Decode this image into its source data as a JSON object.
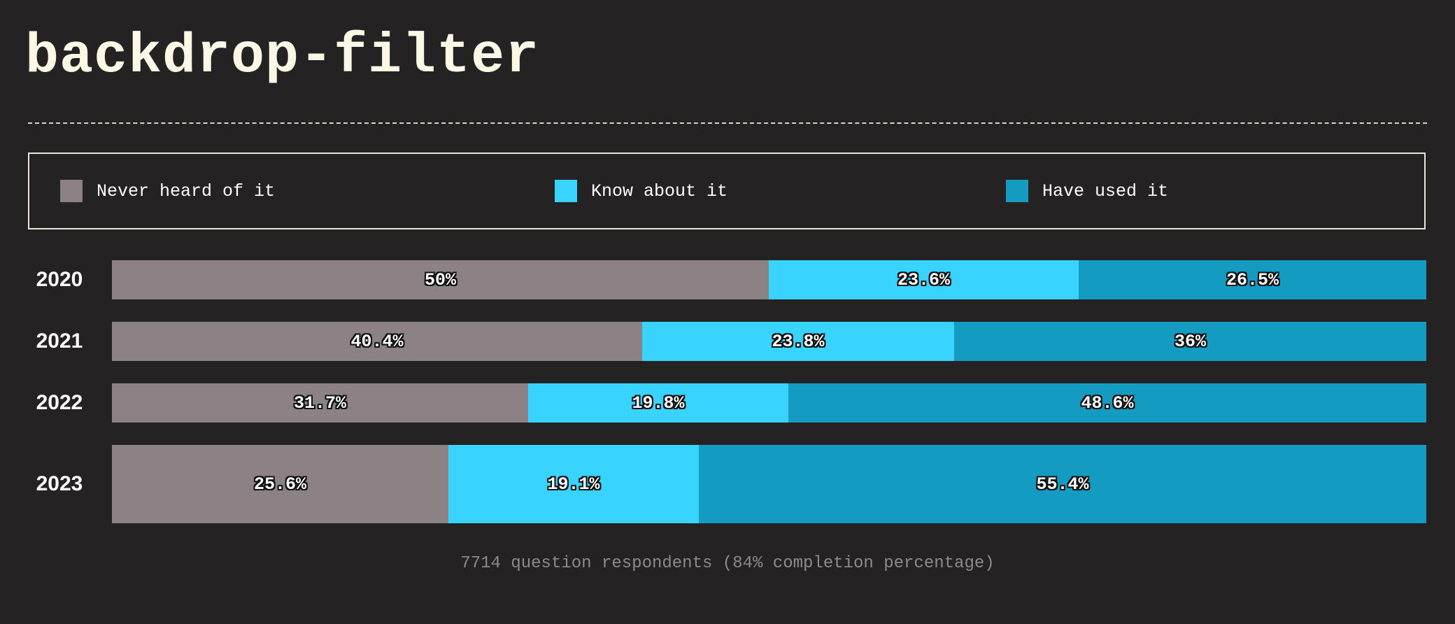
{
  "title": "backdrop-filter",
  "legend": [
    {
      "label": "Never heard of it",
      "color": "#8c8286"
    },
    {
      "label": "Know about it",
      "color": "#38d4ff"
    },
    {
      "label": "Have used it",
      "color": "#139bc2"
    }
  ],
  "chart_data": {
    "type": "bar",
    "orientation": "horizontal",
    "stacked": true,
    "categories": [
      "2020",
      "2021",
      "2022",
      "2023"
    ],
    "series": [
      {
        "name": "Never heard of it",
        "values": [
          50,
          40.4,
          31.7,
          25.6
        ],
        "labels": [
          "50%",
          "40.4%",
          "31.7%",
          "25.6%"
        ],
        "color": "#8c8286"
      },
      {
        "name": "Know about it",
        "values": [
          23.6,
          23.8,
          19.8,
          19.1
        ],
        "labels": [
          "23.6%",
          "23.8%",
          "19.8%",
          "19.1%"
        ],
        "color": "#38d4ff"
      },
      {
        "name": "Have used it",
        "values": [
          26.5,
          36,
          48.6,
          55.4
        ],
        "labels": [
          "26.5%",
          "36%",
          "48.6%",
          "55.4%"
        ],
        "color": "#139bc2"
      }
    ],
    "legend_position": "top",
    "grid": false
  },
  "footer": "7714 question respondents (84% completion percentage)"
}
